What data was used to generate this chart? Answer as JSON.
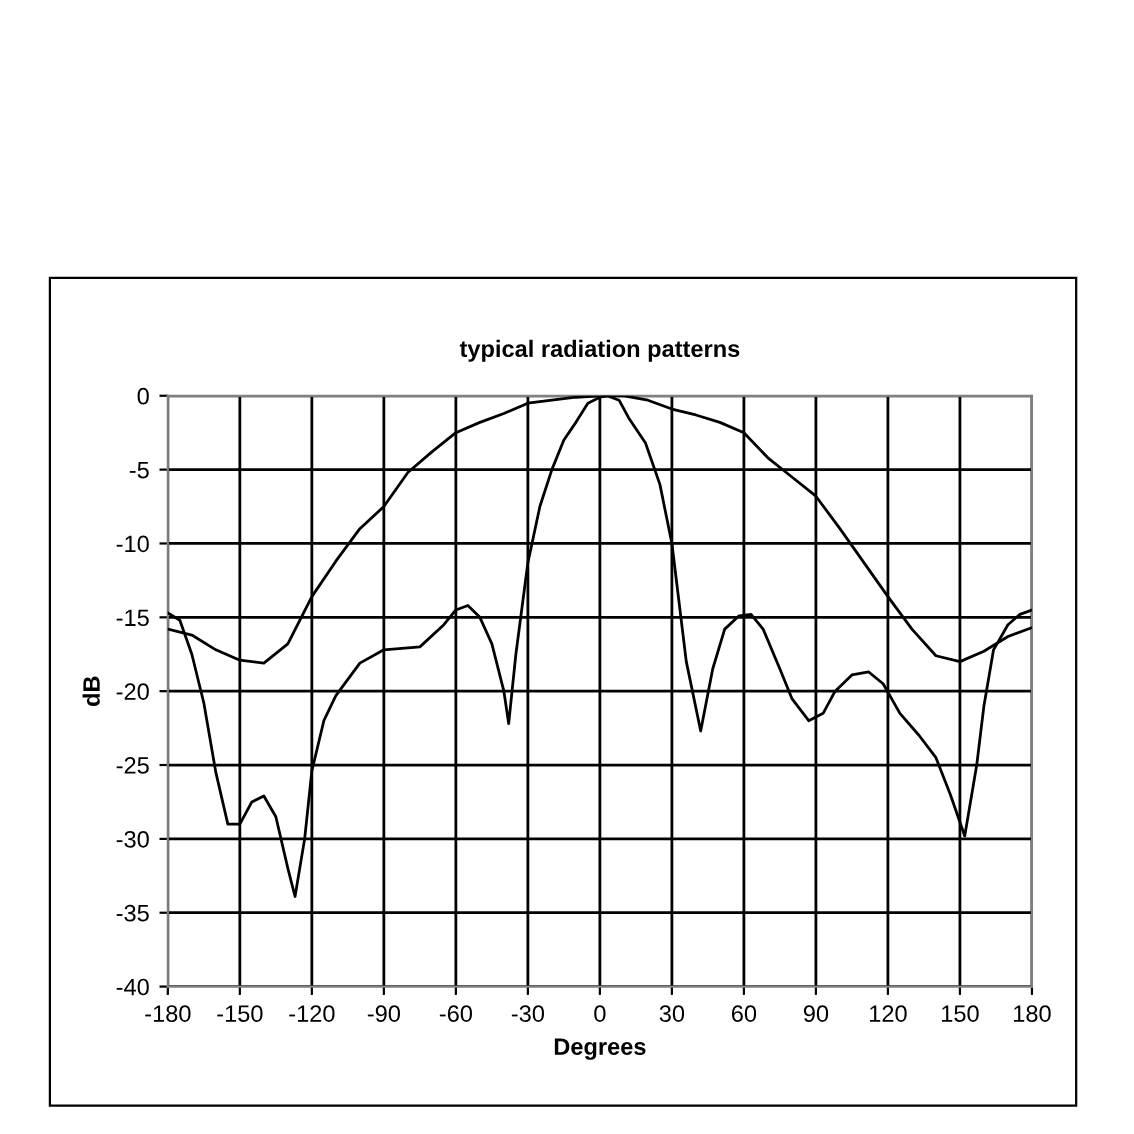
{
  "chart_data": {
    "type": "line",
    "title": "typical radiation patterns",
    "xlabel": "Degrees",
    "ylabel": "dB",
    "series": [
      {
        "color": "#000000",
        "x": [
          -180,
          -170,
          -160,
          -150,
          -140,
          -130,
          -120,
          -110,
          -100,
          -90,
          -80,
          -70,
          -60,
          -50,
          -40,
          -30,
          -20,
          -10,
          0,
          10,
          20,
          30,
          40,
          50,
          60,
          70,
          80,
          90,
          100,
          110,
          120,
          130,
          140,
          150,
          160,
          170,
          180
        ],
        "values": [
          -15.8,
          -16.2,
          -17.2,
          -17.9,
          -18.1,
          -16.8,
          -13.6,
          -11.2,
          -9,
          -7.5,
          -5.2,
          -3.8,
          -2.5,
          -1.8,
          -1.2,
          -0.5,
          -0.3,
          -0.1,
          0,
          0,
          -0.3,
          -0.9,
          -1.3,
          -1.8,
          -2.5,
          -4.2,
          -5.5,
          -6.8,
          -9,
          -11.3,
          -13.6,
          -15.8,
          -17.6,
          -18,
          -17.3,
          -16.3,
          -15.7
        ]
      },
      {
        "color": "#000000",
        "x": [
          -180,
          -175,
          -170,
          -165,
          -160,
          -155,
          -150,
          -145,
          -140,
          -135,
          -130,
          -127,
          -123,
          -120,
          -115,
          -110,
          -100,
          -90,
          -75,
          -65,
          -60,
          -55,
          -50,
          -45,
          -40,
          -38,
          -35,
          -30,
          -25,
          -20,
          -15,
          -10,
          -5,
          0,
          3,
          8,
          12,
          19,
          25,
          30,
          36,
          42,
          47,
          52,
          58,
          63,
          68,
          75,
          80,
          87,
          93,
          98,
          105,
          112,
          118,
          125,
          133,
          140,
          146,
          152,
          157,
          160,
          164,
          170,
          175,
          180
        ],
        "values": [
          -14.7,
          -15.2,
          -17.5,
          -20.8,
          -25.5,
          -29,
          -29,
          -27.5,
          -27.1,
          -28.5,
          -32,
          -33.9,
          -30,
          -25.4,
          -22,
          -20.3,
          -18.1,
          -17.2,
          -17,
          -15.5,
          -14.5,
          -14.2,
          -15,
          -16.8,
          -20,
          -22.2,
          -17.5,
          -11.3,
          -7.5,
          -5,
          -3,
          -1.8,
          -0.5,
          -0.1,
          0,
          -0.3,
          -1.5,
          -3.2,
          -6,
          -10,
          -18,
          -22.7,
          -18.5,
          -15.8,
          -14.9,
          -14.8,
          -15.8,
          -18.5,
          -20.5,
          -22,
          -21.5,
          -20,
          -18.9,
          -18.7,
          -19.5,
          -21.5,
          -23,
          -24.5,
          -27,
          -29.8,
          -25,
          -21,
          -17.2,
          -15.5,
          -14.8,
          -14.5
        ]
      }
    ],
    "xlim": [
      -180,
      180
    ],
    "xticks": [
      -180,
      -150,
      -120,
      -90,
      -60,
      -30,
      0,
      30,
      60,
      90,
      120,
      150,
      180
    ],
    "ylim": [
      -40,
      0
    ],
    "yticks": [
      -40,
      -35,
      -30,
      -25,
      -20,
      -15,
      -10,
      -5,
      0
    ],
    "grid": true,
    "marker": "none",
    "line_style": "solid"
  }
}
